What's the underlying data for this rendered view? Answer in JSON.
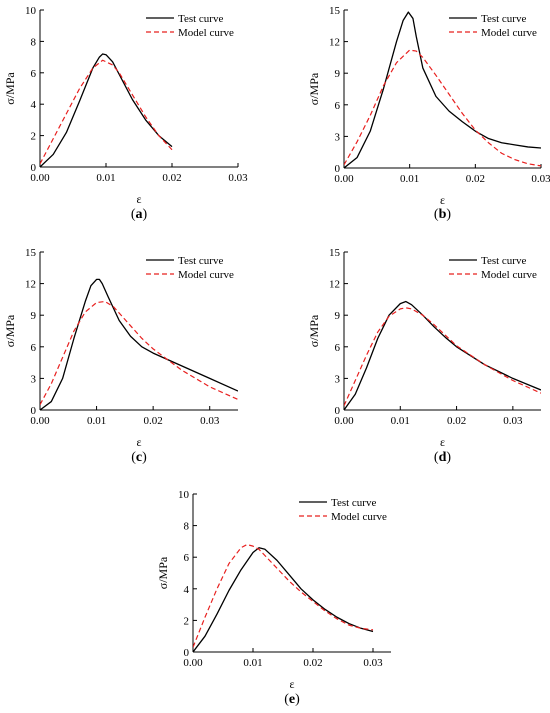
{
  "colors": {
    "test": "#000000",
    "model": "#e8201f",
    "axis": "#000000"
  },
  "chart_data": [
    {
      "type": "line",
      "panel_label": "a",
      "xlabel": "ε",
      "ylabel": "σ/MPa",
      "xlim": [
        0,
        0.03
      ],
      "ylim": [
        0,
        10
      ],
      "xticks": [
        "0.00",
        "0.01",
        "0.02",
        "0.03"
      ],
      "yticks": [
        "0",
        "2",
        "4",
        "6",
        "8",
        "10"
      ],
      "legend": "top-right",
      "series": [
        {
          "name": "Test curve",
          "style": "solid",
          "x": [
            0,
            0.002,
            0.004,
            0.006,
            0.008,
            0.009,
            0.0095,
            0.01,
            0.011,
            0.012,
            0.014,
            0.016,
            0.018,
            0.02
          ],
          "y": [
            0,
            0.8,
            2.2,
            4.2,
            6.3,
            7.0,
            7.2,
            7.15,
            6.7,
            5.9,
            4.3,
            3.0,
            2.0,
            1.3
          ]
        },
        {
          "name": "Model curve",
          "style": "dashed",
          "x": [
            0,
            0.002,
            0.004,
            0.006,
            0.008,
            0.0095,
            0.011,
            0.012,
            0.014,
            0.016,
            0.018,
            0.02
          ],
          "y": [
            0.2,
            1.8,
            3.4,
            5.0,
            6.3,
            6.8,
            6.5,
            6.0,
            4.6,
            3.2,
            2.0,
            1.1
          ]
        }
      ]
    },
    {
      "type": "line",
      "panel_label": "b",
      "xlabel": "ε",
      "ylabel": "σ/MPa",
      "xlim": [
        0,
        0.03
      ],
      "ylim": [
        0,
        15
      ],
      "xticks": [
        "0.00",
        "0.01",
        "0.02",
        "0.03"
      ],
      "yticks": [
        "0",
        "3",
        "6",
        "9",
        "12",
        "15"
      ],
      "legend": "top-right",
      "series": [
        {
          "name": "Test curve",
          "style": "solid",
          "x": [
            0,
            0.002,
            0.004,
            0.006,
            0.008,
            0.009,
            0.0098,
            0.0105,
            0.011,
            0.012,
            0.014,
            0.016,
            0.018,
            0.02,
            0.022,
            0.024,
            0.026,
            0.028,
            0.03
          ],
          "y": [
            0,
            1.0,
            3.5,
            7.5,
            12.0,
            14.0,
            14.8,
            14.2,
            12.5,
            9.5,
            6.8,
            5.4,
            4.4,
            3.5,
            2.8,
            2.4,
            2.2,
            2.0,
            1.9
          ]
        },
        {
          "name": "Model curve",
          "style": "dashed",
          "x": [
            0,
            0.002,
            0.004,
            0.006,
            0.008,
            0.01,
            0.011,
            0.012,
            0.014,
            0.016,
            0.018,
            0.02,
            0.022,
            0.024,
            0.026,
            0.028,
            0.03
          ],
          "y": [
            0.3,
            2.5,
            5.0,
            7.8,
            10.0,
            11.2,
            11.1,
            10.5,
            8.8,
            7.0,
            5.2,
            3.6,
            2.4,
            1.4,
            0.8,
            0.4,
            0.2
          ]
        }
      ]
    },
    {
      "type": "line",
      "panel_label": "c",
      "xlabel": "ε",
      "ylabel": "σ/MPa",
      "xlim": [
        0,
        0.035
      ],
      "ylim": [
        0,
        15
      ],
      "xticks": [
        "0.00",
        "0.01",
        "0.02",
        "0.03"
      ],
      "yticks": [
        "0",
        "3",
        "6",
        "9",
        "12",
        "15"
      ],
      "legend": "top-right",
      "series": [
        {
          "name": "Test curve",
          "style": "solid",
          "x": [
            0,
            0.002,
            0.004,
            0.006,
            0.008,
            0.009,
            0.01,
            0.0105,
            0.011,
            0.012,
            0.014,
            0.016,
            0.018,
            0.02,
            0.025,
            0.03,
            0.035
          ],
          "y": [
            0,
            0.8,
            3.0,
            6.8,
            10.3,
            11.8,
            12.4,
            12.4,
            12.0,
            10.8,
            8.5,
            7.0,
            6.0,
            5.4,
            4.2,
            3.0,
            1.8
          ]
        },
        {
          "name": "Model curve",
          "style": "dashed",
          "x": [
            0,
            0.002,
            0.004,
            0.006,
            0.008,
            0.01,
            0.0115,
            0.013,
            0.015,
            0.018,
            0.02,
            0.025,
            0.03,
            0.035
          ],
          "y": [
            0.5,
            2.5,
            5.0,
            7.5,
            9.3,
            10.2,
            10.3,
            9.8,
            8.6,
            6.8,
            5.8,
            3.8,
            2.2,
            1.0
          ]
        }
      ]
    },
    {
      "type": "line",
      "panel_label": "d",
      "xlabel": "ε",
      "ylabel": "σ/MPa",
      "xlim": [
        0,
        0.035
      ],
      "ylim": [
        0,
        15
      ],
      "xticks": [
        "0.00",
        "0.01",
        "0.02",
        "0.03"
      ],
      "yticks": [
        "0",
        "3",
        "6",
        "9",
        "12",
        "15"
      ],
      "legend": "top-right",
      "series": [
        {
          "name": "Test curve",
          "style": "solid",
          "x": [
            0,
            0.002,
            0.004,
            0.006,
            0.008,
            0.01,
            0.011,
            0.012,
            0.014,
            0.016,
            0.018,
            0.02,
            0.025,
            0.03,
            0.035
          ],
          "y": [
            0,
            1.5,
            4.0,
            6.8,
            9.0,
            10.1,
            10.3,
            10.0,
            9.0,
            7.9,
            6.9,
            6.0,
            4.3,
            3.0,
            1.9
          ]
        },
        {
          "name": "Model curve",
          "style": "dashed",
          "x": [
            0,
            0.002,
            0.004,
            0.006,
            0.008,
            0.01,
            0.011,
            0.012,
            0.014,
            0.016,
            0.018,
            0.02,
            0.025,
            0.03,
            0.035
          ],
          "y": [
            0.4,
            2.8,
            5.2,
            7.4,
            8.9,
            9.6,
            9.7,
            9.6,
            9.0,
            8.1,
            7.1,
            6.1,
            4.3,
            2.8,
            1.6
          ]
        }
      ]
    },
    {
      "type": "line",
      "panel_label": "e",
      "xlabel": "ε",
      "ylabel": "σ/MPa",
      "xlim": [
        0,
        0.033
      ],
      "ylim": [
        0,
        10
      ],
      "xticks": [
        "0.00",
        "0.01",
        "0.02",
        "0.03"
      ],
      "yticks": [
        "0",
        "2",
        "4",
        "6",
        "8",
        "10"
      ],
      "legend": "top-right",
      "series": [
        {
          "name": "Test curve",
          "style": "solid",
          "x": [
            0,
            0.002,
            0.004,
            0.006,
            0.008,
            0.01,
            0.011,
            0.012,
            0.014,
            0.016,
            0.018,
            0.02,
            0.022,
            0.024,
            0.026,
            0.028,
            0.03
          ],
          "y": [
            0,
            1.0,
            2.4,
            3.9,
            5.2,
            6.3,
            6.6,
            6.5,
            5.8,
            4.9,
            4.0,
            3.3,
            2.7,
            2.2,
            1.8,
            1.5,
            1.3
          ]
        },
        {
          "name": "Model curve",
          "style": "dashed",
          "x": [
            0,
            0.002,
            0.004,
            0.006,
            0.008,
            0.009,
            0.01,
            0.011,
            0.012,
            0.014,
            0.016,
            0.018,
            0.02,
            0.022,
            0.024,
            0.026,
            0.028,
            0.03
          ],
          "y": [
            0.3,
            2.2,
            4.0,
            5.6,
            6.6,
            6.8,
            6.7,
            6.5,
            6.1,
            5.3,
            4.5,
            3.8,
            3.2,
            2.6,
            2.1,
            1.7,
            1.5,
            1.4
          ]
        }
      ]
    }
  ]
}
